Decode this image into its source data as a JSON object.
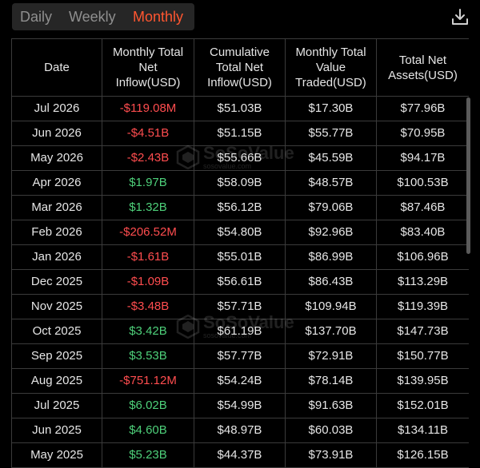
{
  "tabs": {
    "items": [
      {
        "label": "Daily"
      },
      {
        "label": "Weekly"
      },
      {
        "label": "Monthly"
      }
    ],
    "active": "Monthly",
    "active_color": "#ff5630",
    "inactive_color": "#8f8f8f"
  },
  "download_icon": "download-icon",
  "watermark": {
    "name": "SoSoValue",
    "url": "sosovalue.com"
  },
  "table": {
    "headers": [
      [
        "Date"
      ],
      [
        "Monthly Total",
        "Net",
        "Inflow(USD)"
      ],
      [
        "Cumulative",
        "Total Net",
        "Inflow(USD)"
      ],
      [
        "Monthly Total",
        "Value",
        "Traded(USD)"
      ],
      [
        "Total Net",
        "Assets(USD)"
      ]
    ],
    "rows": [
      {
        "date": "Jul 2026",
        "inflow": "-$119.08M",
        "sign": "neg",
        "cumulative": "$51.03B",
        "traded": "$17.30B",
        "assets": "$77.96B"
      },
      {
        "date": "Jun 2026",
        "inflow": "-$4.51B",
        "sign": "neg",
        "cumulative": "$51.15B",
        "traded": "$55.77B",
        "assets": "$70.95B"
      },
      {
        "date": "May 2026",
        "inflow": "-$2.43B",
        "sign": "neg",
        "cumulative": "$55.66B",
        "traded": "$45.59B",
        "assets": "$94.17B"
      },
      {
        "date": "Apr 2026",
        "inflow": "$1.97B",
        "sign": "pos",
        "cumulative": "$58.09B",
        "traded": "$48.57B",
        "assets": "$100.53B"
      },
      {
        "date": "Mar 2026",
        "inflow": "$1.32B",
        "sign": "pos",
        "cumulative": "$56.12B",
        "traded": "$79.06B",
        "assets": "$87.46B"
      },
      {
        "date": "Feb 2026",
        "inflow": "-$206.52M",
        "sign": "neg",
        "cumulative": "$54.80B",
        "traded": "$92.96B",
        "assets": "$83.40B"
      },
      {
        "date": "Jan 2026",
        "inflow": "-$1.61B",
        "sign": "neg",
        "cumulative": "$55.01B",
        "traded": "$86.99B",
        "assets": "$106.96B"
      },
      {
        "date": "Dec 2025",
        "inflow": "-$1.09B",
        "sign": "neg",
        "cumulative": "$56.61B",
        "traded": "$86.43B",
        "assets": "$113.29B"
      },
      {
        "date": "Nov 2025",
        "inflow": "-$3.48B",
        "sign": "neg",
        "cumulative": "$57.71B",
        "traded": "$109.94B",
        "assets": "$119.39B"
      },
      {
        "date": "Oct 2025",
        "inflow": "$3.42B",
        "sign": "pos",
        "cumulative": "$61.19B",
        "traded": "$137.70B",
        "assets": "$147.73B"
      },
      {
        "date": "Sep 2025",
        "inflow": "$3.53B",
        "sign": "pos",
        "cumulative": "$57.77B",
        "traded": "$72.91B",
        "assets": "$150.77B"
      },
      {
        "date": "Aug 2025",
        "inflow": "-$751.12M",
        "sign": "neg",
        "cumulative": "$54.24B",
        "traded": "$78.14B",
        "assets": "$139.95B"
      },
      {
        "date": "Jul 2025",
        "inflow": "$6.02B",
        "sign": "pos",
        "cumulative": "$54.99B",
        "traded": "$91.63B",
        "assets": "$152.01B"
      },
      {
        "date": "Jun 2025",
        "inflow": "$4.60B",
        "sign": "pos",
        "cumulative": "$48.97B",
        "traded": "$60.03B",
        "assets": "$134.11B"
      },
      {
        "date": "May 2025",
        "inflow": "$5.23B",
        "sign": "pos",
        "cumulative": "$44.37B",
        "traded": "$73.91B",
        "assets": "$126.15B"
      }
    ],
    "negative_color": "#ff4d4f",
    "positive_color": "#4ed07a"
  }
}
